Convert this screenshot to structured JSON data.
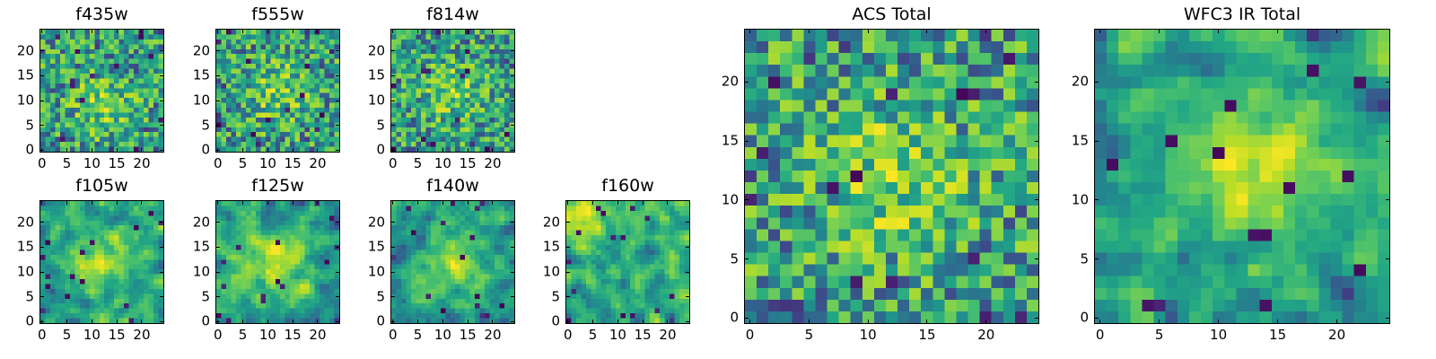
{
  "chart_data": [
    {
      "type": "heatmap",
      "title": "f435w",
      "shape": [
        25,
        25
      ],
      "xticks": [
        0,
        5,
        10,
        15,
        20
      ],
      "yticks": [
        0,
        5,
        10,
        15,
        20
      ],
      "xlim": [
        -0.5,
        24.5
      ],
      "ylim": [
        -0.5,
        24.5
      ],
      "colormap": "viridis",
      "grid": false,
      "seed": 11,
      "smooth": 0,
      "bright_center": [
        12,
        9
      ],
      "values": "noise field, brightest near center"
    },
    {
      "type": "heatmap",
      "title": "f555w",
      "shape": [
        25,
        25
      ],
      "xticks": [
        0,
        5,
        10,
        15,
        20
      ],
      "yticks": [
        0,
        5,
        10,
        15,
        20
      ],
      "xlim": [
        -0.5,
        24.5
      ],
      "ylim": [
        -0.5,
        24.5
      ],
      "colormap": "viridis",
      "grid": false,
      "seed": 23,
      "smooth": 0,
      "bright_center": [
        12,
        12
      ]
    },
    {
      "type": "heatmap",
      "title": "f814w",
      "shape": [
        25,
        25
      ],
      "xticks": [
        0,
        5,
        10,
        15,
        20
      ],
      "yticks": [
        0,
        5,
        10,
        15,
        20
      ],
      "xlim": [
        -0.5,
        24.5
      ],
      "ylim": [
        -0.5,
        24.5
      ],
      "colormap": "viridis",
      "grid": false,
      "seed": 37,
      "smooth": 0,
      "bright_center": [
        12,
        12
      ]
    },
    {
      "type": "heatmap",
      "title": "f105w",
      "shape": [
        25,
        25
      ],
      "xticks": [
        0,
        5,
        10,
        15,
        20
      ],
      "yticks": [
        0,
        5,
        10,
        15,
        20
      ],
      "xlim": [
        -0.5,
        24.5
      ],
      "ylim": [
        -0.5,
        24.5
      ],
      "colormap": "viridis",
      "grid": false,
      "seed": 41,
      "smooth": 1,
      "bright_center": [
        12,
        12
      ]
    },
    {
      "type": "heatmap",
      "title": "f125w",
      "shape": [
        25,
        25
      ],
      "xticks": [
        0,
        5,
        10,
        15,
        20
      ],
      "yticks": [
        0,
        5,
        10,
        15,
        20
      ],
      "xlim": [
        -0.5,
        24.5
      ],
      "ylim": [
        -0.5,
        24.5
      ],
      "colormap": "viridis",
      "grid": false,
      "seed": 53,
      "smooth": 1,
      "bright_center": [
        12,
        12
      ]
    },
    {
      "type": "heatmap",
      "title": "f140w",
      "shape": [
        25,
        25
      ],
      "xticks": [
        0,
        5,
        10,
        15,
        20
      ],
      "yticks": [
        0,
        5,
        10,
        15,
        20
      ],
      "xlim": [
        -0.5,
        24.5
      ],
      "ylim": [
        -0.5,
        24.5
      ],
      "colormap": "viridis",
      "grid": false,
      "seed": 67,
      "smooth": 1,
      "bright_center": [
        12,
        12
      ]
    },
    {
      "type": "heatmap",
      "title": "f160w",
      "shape": [
        25,
        25
      ],
      "xticks": [
        0,
        5,
        10,
        15,
        20
      ],
      "yticks": [
        0,
        5,
        10,
        15,
        20
      ],
      "xlim": [
        -0.5,
        24.5
      ],
      "ylim": [
        -0.5,
        24.5
      ],
      "colormap": "viridis",
      "grid": false,
      "seed": 79,
      "smooth": 1,
      "bright_center": [
        1,
        22
      ]
    },
    {
      "type": "heatmap",
      "title": "ACS Total",
      "shape": [
        25,
        25
      ],
      "xticks": [
        0,
        5,
        10,
        15,
        20
      ],
      "yticks": [
        0,
        5,
        10,
        15,
        20
      ],
      "xlim": [
        -0.5,
        24.5
      ],
      "ylim": [
        -0.5,
        24.5
      ],
      "colormap": "viridis",
      "grid": false,
      "seed": 97,
      "smooth": 0,
      "bright_center": [
        12,
        12
      ]
    },
    {
      "type": "heatmap",
      "title": "WFC3 IR Total",
      "shape": [
        25,
        25
      ],
      "xticks": [
        0,
        5,
        10,
        15,
        20
      ],
      "yticks": [
        0,
        5,
        10,
        15,
        20
      ],
      "xlim": [
        -0.5,
        24.5
      ],
      "ylim": [
        -0.5,
        24.5
      ],
      "colormap": "viridis",
      "grid": false,
      "seed": 113,
      "smooth": 1,
      "bright_center": [
        13,
        13
      ]
    }
  ]
}
